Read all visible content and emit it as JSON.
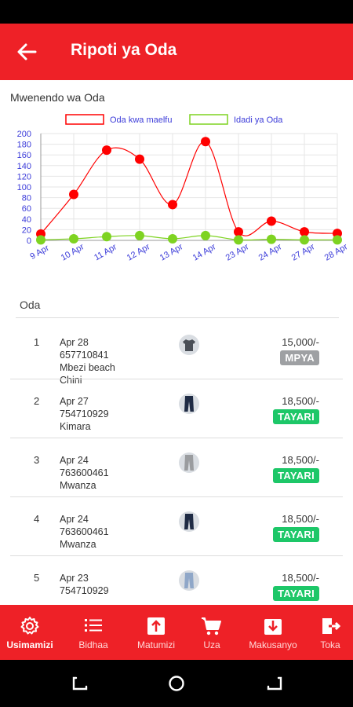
{
  "app_bar": {
    "title": "Ripoti ya Oda",
    "back_icon": "arrow-left-icon"
  },
  "chart_title": "Mwenendo wa Oda",
  "chart_data": {
    "type": "line",
    "categories": [
      "9 Apr",
      "10 Apr",
      "11 Apr",
      "12 Apr",
      "13 Apr",
      "14 Apr",
      "23 Apr",
      "24 Apr",
      "27 Apr",
      "28 Apr"
    ],
    "series": [
      {
        "name": "Oda kwa maelfu",
        "color": "#ff0000",
        "values": [
          12,
          86,
          169,
          152,
          67,
          185,
          16,
          36,
          16,
          13
        ]
      },
      {
        "name": "Idadi ya Oda",
        "color": "#7ed321",
        "values": [
          1,
          3,
          7,
          9,
          3,
          9,
          1,
          2,
          1,
          1
        ]
      }
    ],
    "ylim": [
      0,
      200
    ],
    "y_ticks": [
      0,
      20,
      40,
      60,
      80,
      100,
      120,
      140,
      160,
      180,
      200
    ],
    "grid": true,
    "legend": "top-center",
    "smooth": true
  },
  "orders_header": "Oda",
  "orders": [
    {
      "num": "1",
      "date": "Apr 28",
      "phone": "657710841",
      "location_lines": [
        "Mbezi beach",
        "Chini"
      ],
      "price": "15,000/-",
      "status": "MPYA",
      "status_type": "new"
    },
    {
      "num": "2",
      "date": "Apr 27",
      "phone": "754710929",
      "location_lines": [
        "Kimara"
      ],
      "price": "18,500/-",
      "status": "TAYARI",
      "status_type": "ready"
    },
    {
      "num": "3",
      "date": "Apr 24",
      "phone": "763600461",
      "location_lines": [
        "Mwanza"
      ],
      "price": "18,500/-",
      "status": "TAYARI",
      "status_type": "ready"
    },
    {
      "num": "4",
      "date": "Apr 24",
      "phone": "763600461",
      "location_lines": [
        "Mwanza"
      ],
      "price": "18,500/-",
      "status": "TAYARI",
      "status_type": "ready"
    },
    {
      "num": "5",
      "date": "Apr 23",
      "phone": "754710929",
      "location_lines": [],
      "price": "18,500/-",
      "status": "TAYARI",
      "status_type": "ready"
    }
  ],
  "bottom_nav": [
    {
      "label": "Usimamizi",
      "icon": "gear-icon",
      "active": true
    },
    {
      "label": "Bidhaa",
      "icon": "list-icon",
      "active": false
    },
    {
      "label": "Matumizi",
      "icon": "upload-icon",
      "active": false
    },
    {
      "label": "Uza",
      "icon": "cart-icon",
      "active": false
    },
    {
      "label": "Makusanyo",
      "icon": "download-icon",
      "active": false
    },
    {
      "label": "Toka",
      "icon": "logout-icon",
      "active": false
    }
  ],
  "colors": {
    "primary": "#ee2127",
    "badge_new": "#9ea0a3",
    "badge_ready": "#1dc768"
  }
}
